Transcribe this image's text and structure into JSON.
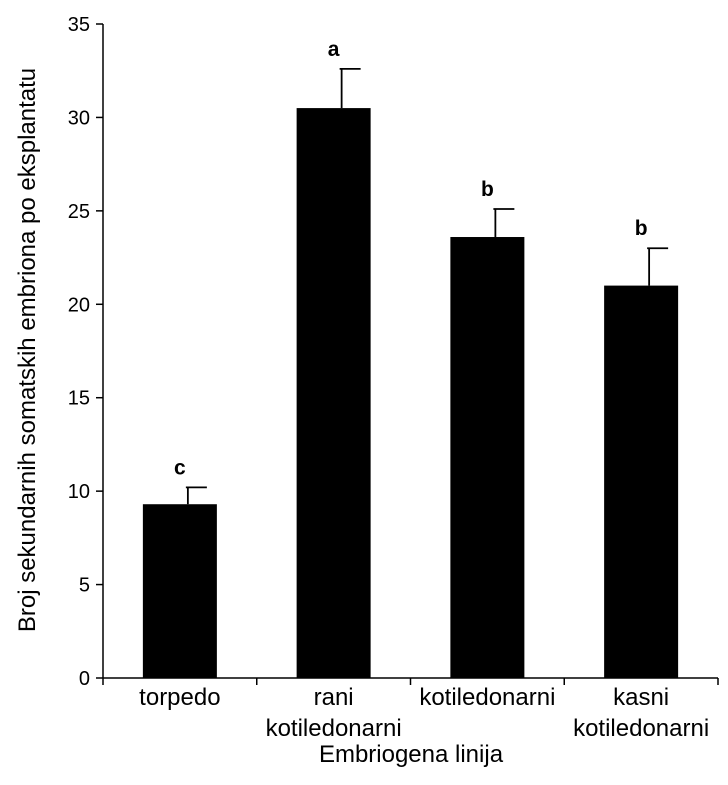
{
  "chart_data": {
    "type": "bar",
    "categories": [
      [
        "torpedo"
      ],
      [
        "rani",
        "kotiledonarni"
      ],
      [
        "kotiledonarni"
      ],
      [
        "kasni",
        "kotiledonarni"
      ]
    ],
    "values": [
      9.3,
      30.5,
      23.6,
      21.0
    ],
    "errors": [
      0.9,
      2.1,
      1.5,
      2.0
    ],
    "significance": [
      "c",
      "a",
      "b",
      "b"
    ],
    "xlabel": "Embriogena linija",
    "ylabel": "Broj sekundarnih somatskih embriona po eksplantatu",
    "ylim": [
      0,
      35
    ],
    "yticks": [
      0,
      5,
      10,
      15,
      20,
      25,
      30,
      35
    ],
    "bar_color": "#000000",
    "grid": false
  }
}
